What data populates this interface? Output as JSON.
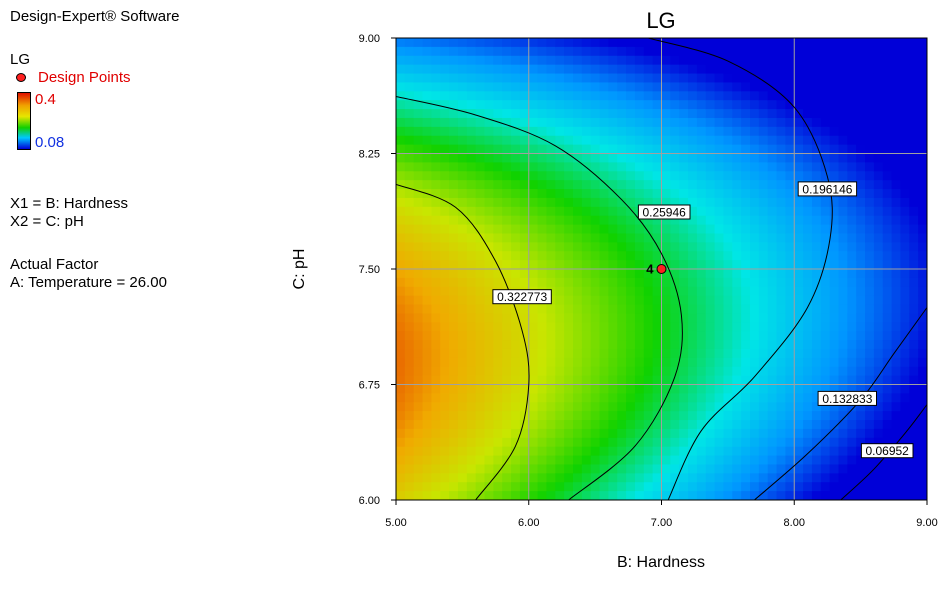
{
  "software": "Design-Expert® Software",
  "legend": {
    "response": "LG",
    "design_points_label": "Design Points",
    "colorbar_high": "0.4",
    "colorbar_low": "0.08",
    "x1": "X1 = B: Hardness",
    "x2": "X2 = C: pH",
    "actual_factor_title": "Actual Factor",
    "actual_factor": "A: Temperature = 26.00"
  },
  "colors": {
    "point_fill": "#ff2020",
    "high": "#e01000",
    "low": "#0000d8",
    "grid": "#a0a0a0"
  },
  "chart_data": {
    "type": "heatmap",
    "title": "LG",
    "xlabel": "B: Hardness",
    "ylabel": "C: pH",
    "xlim": [
      5.0,
      9.0
    ],
    "ylim": [
      6.0,
      9.0
    ],
    "x_ticks": [
      "5.00",
      "6.00",
      "7.00",
      "8.00",
      "9.00"
    ],
    "y_ticks": [
      "6.00",
      "6.75",
      "7.50",
      "8.25",
      "9.00"
    ],
    "grid": true,
    "color_range": [
      0.08,
      0.4
    ],
    "contours": [
      {
        "label": "0.322773",
        "value": 0.322773,
        "points": [
          [
            5.0,
            8.05
          ],
          [
            5.45,
            7.9
          ],
          [
            5.75,
            7.55
          ],
          [
            5.95,
            7.1
          ],
          [
            6.0,
            6.75
          ],
          [
            5.9,
            6.35
          ],
          [
            5.6,
            6.0
          ]
        ],
        "label_at": [
          5.95,
          7.32
        ]
      },
      {
        "label": "0.25946",
        "value": 0.25946,
        "points": [
          [
            5.0,
            8.62
          ],
          [
            5.6,
            8.5
          ],
          [
            6.2,
            8.3
          ],
          [
            6.7,
            7.95
          ],
          [
            7.0,
            7.6
          ],
          [
            7.15,
            7.2
          ],
          [
            7.1,
            6.8
          ],
          [
            6.8,
            6.35
          ],
          [
            6.3,
            6.0
          ]
        ],
        "label_at": [
          7.02,
          7.87
        ]
      },
      {
        "label": "0.196146",
        "value": 0.196146,
        "points": [
          [
            6.9,
            9.0
          ],
          [
            7.5,
            8.85
          ],
          [
            8.0,
            8.55
          ],
          [
            8.25,
            8.1
          ],
          [
            8.27,
            7.7
          ],
          [
            8.1,
            7.25
          ],
          [
            7.7,
            6.8
          ],
          [
            7.3,
            6.45
          ],
          [
            7.05,
            6.0
          ]
        ],
        "label_at": [
          8.25,
          8.02
        ]
      },
      {
        "label": "0.132833",
        "value": 0.132833,
        "points": [
          [
            7.7,
            6.0
          ],
          [
            8.1,
            6.3
          ],
          [
            8.5,
            6.65
          ],
          [
            8.75,
            6.95
          ],
          [
            9.0,
            7.25
          ]
        ],
        "label_at": [
          8.4,
          6.66
        ]
      },
      {
        "label": "0.06952",
        "value": 0.06952,
        "points": [
          [
            8.35,
            6.0
          ],
          [
            8.6,
            6.2
          ],
          [
            8.85,
            6.45
          ],
          [
            9.0,
            6.62
          ]
        ],
        "label_at": [
          8.7,
          6.32
        ]
      }
    ],
    "design_points": [
      {
        "x": 7.0,
        "y": 7.5,
        "label": "4"
      }
    ]
  }
}
